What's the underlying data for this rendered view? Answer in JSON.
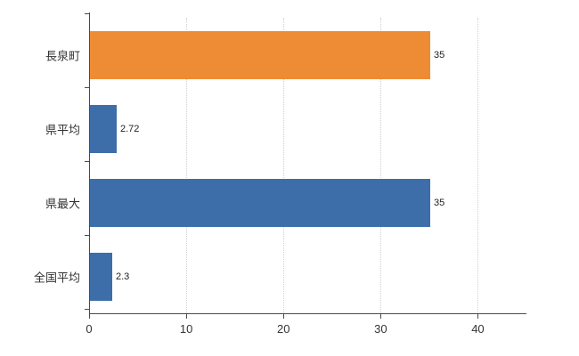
{
  "chart_data": {
    "type": "bar",
    "orientation": "horizontal",
    "title": "",
    "xlabel": "",
    "ylabel": "",
    "categories": [
      "長泉町",
      "県平均",
      "県最大",
      "全国平均"
    ],
    "values": [
      35,
      2.72,
      35,
      2.3
    ],
    "value_labels": [
      "35",
      "2.72",
      "35",
      "2.3"
    ],
    "colors": [
      "#ED8C35",
      "#3D6EA9",
      "#3D6EA9",
      "#3D6EA9"
    ],
    "xlim": [
      0,
      45
    ],
    "xticks": [
      0,
      10,
      20,
      30,
      40
    ],
    "grid": "vertical-dotted",
    "legend_position": "none",
    "axis_color": "#4a4a4a",
    "gridline_color": "#d0d0d0",
    "background_color": "#ffffff"
  }
}
